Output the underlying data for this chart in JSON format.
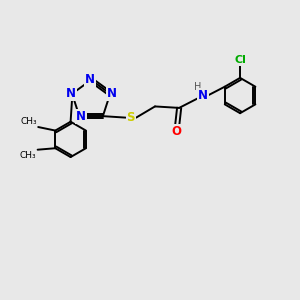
{
  "background_color": "#e8e8e8",
  "atom_colors": {
    "N": "#0000EE",
    "S": "#CCCC00",
    "O": "#FF0000",
    "Cl": "#00AA00",
    "C": "#000000",
    "H": "#555555"
  },
  "bond_color": "#000000",
  "bond_lw": 1.4,
  "font_size_atom": 8.5,
  "font_size_small": 7.5
}
